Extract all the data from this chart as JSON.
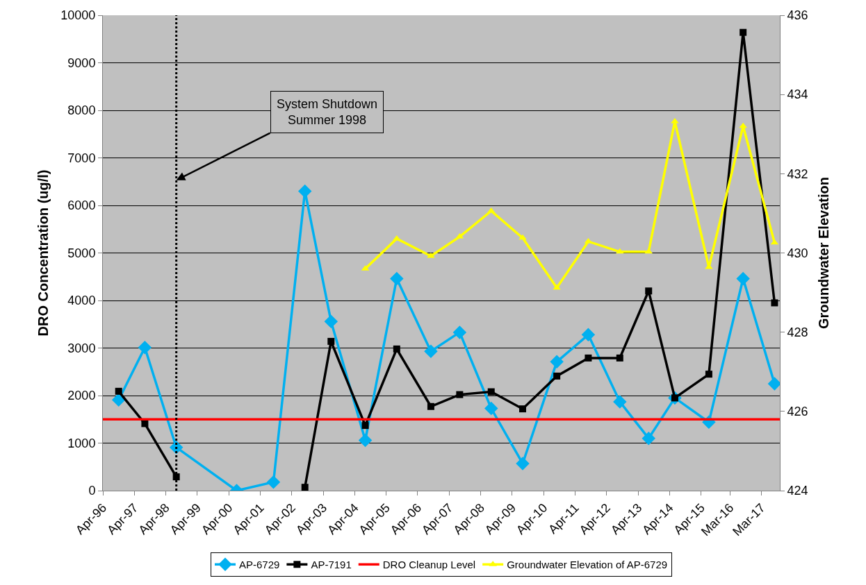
{
  "chart_data": {
    "type": "line",
    "ylabel": "DRO Concentration (ug/l)",
    "y2label": "Groundwater Elevation",
    "xlim": [
      "1996-04-01",
      "2017-10-01"
    ],
    "xticks": [
      {
        "value": "1996-04-01",
        "label": "Apr-96"
      },
      {
        "value": "1997-04-01",
        "label": "Apr-97"
      },
      {
        "value": "1998-04-01",
        "label": "Apr-98"
      },
      {
        "value": "1999-04-01",
        "label": "Apr-99"
      },
      {
        "value": "2000-04-01",
        "label": "Apr-00"
      },
      {
        "value": "2001-04-01",
        "label": "Apr-01"
      },
      {
        "value": "2002-04-01",
        "label": "Apr-02"
      },
      {
        "value": "2003-04-01",
        "label": "Apr-03"
      },
      {
        "value": "2004-04-01",
        "label": "Apr-04"
      },
      {
        "value": "2005-04-01",
        "label": "Apr-05"
      },
      {
        "value": "2006-04-01",
        "label": "Apr-06"
      },
      {
        "value": "2007-04-01",
        "label": "Apr-07"
      },
      {
        "value": "2008-04-01",
        "label": "Apr-08"
      },
      {
        "value": "2009-04-01",
        "label": "Apr-09"
      },
      {
        "value": "2010-04-01",
        "label": "Apr-10"
      },
      {
        "value": "2011-04-01",
        "label": "Apr-11"
      },
      {
        "value": "2012-04-01",
        "label": "Apr-12"
      },
      {
        "value": "2013-04-01",
        "label": "Apr-13"
      },
      {
        "value": "2014-04-01",
        "label": "Apr-14"
      },
      {
        "value": "2015-04-01",
        "label": "Apr-15"
      },
      {
        "value": "2016-03-01",
        "label": "Mar-16"
      },
      {
        "value": "2017-03-01",
        "label": "Mar-17"
      }
    ],
    "ylim": [
      0,
      10000
    ],
    "yticks": [
      0,
      1000,
      2000,
      3000,
      4000,
      5000,
      6000,
      7000,
      8000,
      9000,
      10000
    ],
    "y2lim": [
      424,
      436
    ],
    "y2ticks": [
      424,
      426,
      428,
      430,
      432,
      434,
      436
    ],
    "x": [
      "1996-10",
      "1997-08",
      "1998-08",
      "2000-07",
      "2001-09",
      "2002-09",
      "2003-07",
      "2004-08",
      "2005-08",
      "2006-09",
      "2007-08",
      "2008-08",
      "2009-08",
      "2010-09",
      "2011-09",
      "2012-09",
      "2013-08",
      "2014-06",
      "2015-07",
      "2016-08",
      "2017-08"
    ],
    "series": [
      {
        "name": "AP-6729",
        "color": "#00b0f0",
        "marker": "diamond",
        "values": [
          1910,
          3010,
          910,
          0,
          180,
          6300,
          3560,
          1060,
          4460,
          2930,
          3330,
          1730,
          570,
          2710,
          3280,
          1870,
          1100,
          1950,
          1440,
          4460,
          2250
        ]
      },
      {
        "name": "AP-7191",
        "color": "#000000",
        "marker": "square",
        "values": [
          2090,
          1410,
          290,
          null,
          null,
          70,
          3140,
          1370,
          2980,
          1770,
          2020,
          2080,
          1720,
          2410,
          2790,
          2790,
          4200,
          1950,
          2450,
          9640,
          3950
        ]
      },
      {
        "name": "Groundwater Elevation of AP-6729",
        "color": "#ffff00",
        "marker": "triangle",
        "axis": "y2",
        "values": [
          null,
          null,
          null,
          null,
          null,
          null,
          null,
          429.6,
          430.36,
          429.92,
          430.41,
          431.06,
          430.38,
          429.12,
          430.29,
          430.03,
          430.03,
          433.32,
          429.64,
          433.2,
          430.26
        ]
      }
    ],
    "ref_lines": [
      {
        "axis": "y",
        "value": 1500,
        "label": "DRO Cleanup Level",
        "color": "#ff0000",
        "line_style": "solid"
      },
      {
        "axis": "x",
        "value": "1998-08",
        "color": "#000000",
        "line_style": "dotted"
      }
    ],
    "annotations": [
      {
        "text": "System Shutdown\nSummer 1998",
        "x": "1998-08",
        "y": 6530
      }
    ],
    "grid": "y",
    "legend": "bottom",
    "line_style": "solid"
  }
}
